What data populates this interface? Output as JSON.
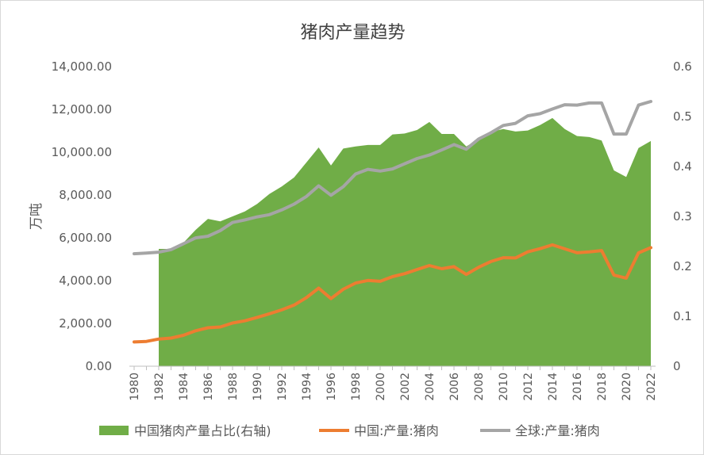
{
  "chart_data": {
    "type": "area+line (dual axis)",
    "title": "猪肉产量趋势",
    "ylabel": "万吨",
    "y_left": {
      "ylim": [
        0,
        14000
      ],
      "ticks": [
        0,
        2000,
        4000,
        6000,
        8000,
        10000,
        12000,
        14000
      ],
      "tick_labels": [
        "0.00",
        "2,000.00",
        "4,000.00",
        "6,000.00",
        "8,000.00",
        "10,000.00",
        "12,000.00",
        "14,000.00"
      ]
    },
    "y_right": {
      "ylim": [
        0,
        0.6
      ],
      "ticks": [
        0,
        0.1,
        0.2,
        0.3,
        0.4,
        0.5,
        0.6
      ],
      "tick_labels": [
        "0",
        "0.1",
        "0.2",
        "0.3",
        "0.4",
        "0.5",
        "0.6"
      ]
    },
    "x": [
      1980,
      1981,
      1982,
      1983,
      1984,
      1985,
      1986,
      1987,
      1988,
      1989,
      1990,
      1991,
      1992,
      1993,
      1994,
      1995,
      1996,
      1997,
      1998,
      1999,
      2000,
      2001,
      2002,
      2003,
      2004,
      2005,
      2006,
      2007,
      2008,
      2009,
      2010,
      2011,
      2012,
      2013,
      2014,
      2015,
      2016,
      2017,
      2018,
      2019,
      2020,
      2021,
      2022
    ],
    "x_tick_labels": [
      "1980",
      "1982",
      "1984",
      "1986",
      "1988",
      "1990",
      "1992",
      "1994",
      "1996",
      "1998",
      "2000",
      "2002",
      "2004",
      "2006",
      "2008",
      "2010",
      "2012",
      "2014",
      "2016",
      "2018",
      "2020",
      "2022"
    ],
    "series": [
      {
        "name": "中国猪肉产量占比(右轴)",
        "type": "area",
        "axis": "right",
        "color": "#70ad47",
        "values": [
          null,
          null,
          0.235,
          0.235,
          0.247,
          0.273,
          0.295,
          0.29,
          0.3,
          0.31,
          0.325,
          0.345,
          0.36,
          0.378,
          0.408,
          0.438,
          0.402,
          0.436,
          0.44,
          0.443,
          0.443,
          0.464,
          0.466,
          0.473,
          0.489,
          0.465,
          0.465,
          0.44,
          0.455,
          0.469,
          0.475,
          0.47,
          0.472,
          0.483,
          0.497,
          0.475,
          0.461,
          0.459,
          0.452,
          0.392,
          0.379,
          0.437,
          0.451
        ]
      },
      {
        "name": "中国:产量:猪肉",
        "type": "line",
        "axis": "left",
        "color": "#ed7d31",
        "values": [
          1134,
          1160,
          1272,
          1316,
          1445,
          1655,
          1796,
          1835,
          2018,
          2123,
          2281,
          2452,
          2635,
          2854,
          3205,
          3648,
          3158,
          3596,
          3884,
          4006,
          3966,
          4184,
          4327,
          4519,
          4702,
          4555,
          4650,
          4288,
          4621,
          4891,
          5071,
          5060,
          5343,
          5493,
          5671,
          5487,
          5299,
          5340,
          5404,
          4255,
          4113,
          5296,
          5541
        ]
      },
      {
        "name": "全球:产量:猪肉",
        "type": "line",
        "axis": "left",
        "color": "#a5a5a5",
        "values": [
          5254,
          5290,
          5330,
          5450,
          5720,
          5996,
          6074,
          6336,
          6713,
          6838,
          6978,
          7081,
          7303,
          7574,
          7930,
          8430,
          7990,
          8390,
          8980,
          9200,
          9119,
          9220,
          9464,
          9702,
          9867,
          10102,
          10355,
          10140,
          10614,
          10906,
          11250,
          11350,
          11700,
          11800,
          12020,
          12220,
          12200,
          12300,
          12300,
          10850,
          10850,
          12200,
          12370
        ]
      }
    ]
  }
}
